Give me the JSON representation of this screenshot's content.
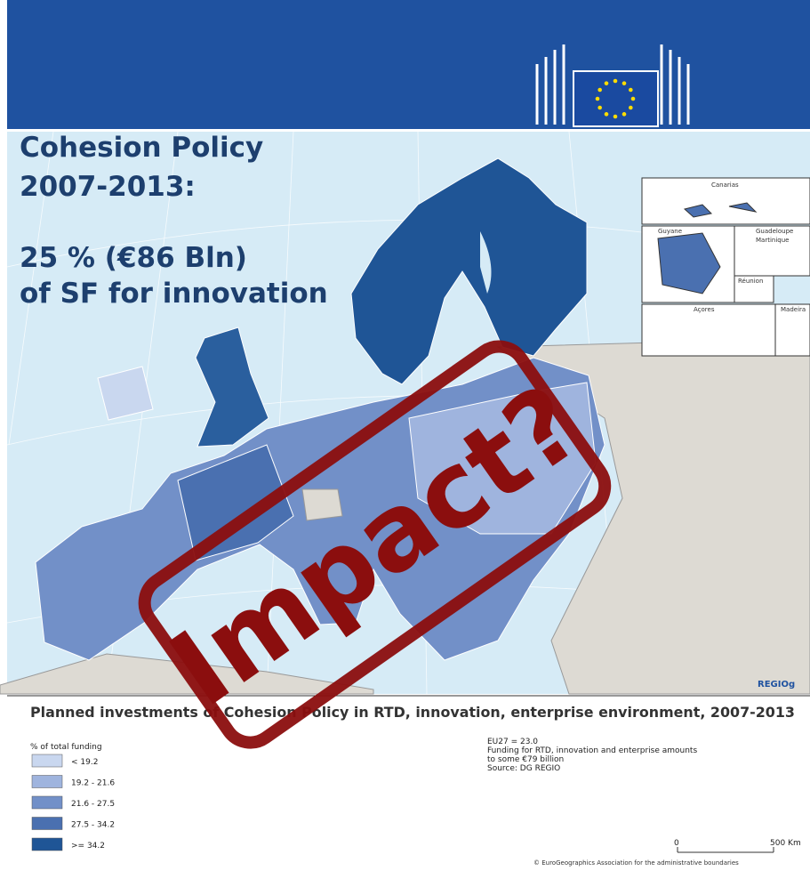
{
  "headline": {
    "line1": "Cohesion Policy",
    "line2": "2007-2013:",
    "line3": "25 % (€86 Bln)",
    "line4": "of SF for innovation"
  },
  "stamp": "Impact?",
  "insets": [
    "Canarias",
    "Guyane",
    "Guadeloupe",
    "Martinique",
    "Réunion",
    "Açores",
    "Madeira"
  ],
  "map_credit": "REGIOg",
  "legend": {
    "title": "Planned investments of Cohesion Policy in RTD, innovation, enterprise environment, 2007-2013",
    "subtitle": "% of total funding",
    "items": [
      {
        "label": "< 19.2",
        "color": "#c9d7ef"
      },
      {
        "label": "19.2 - 21.6",
        "color": "#9fb4de"
      },
      {
        "label": "21.6 - 27.5",
        "color": "#7290c8"
      },
      {
        "label": "27.5 - 34.2",
        "color": "#4a70b0"
      },
      {
        "label": ">= 34.2",
        "color": "#1f5596"
      }
    ]
  },
  "notes": [
    "EU27 = 23.0",
    "Funding for RTD, innovation and enterprise amounts",
    "to some €79 billion",
    "Source: DG REGIO"
  ],
  "scale": {
    "start": "0",
    "end": "500 Km"
  },
  "copyright": "© EuroGeographics Association for the administrative boundaries"
}
